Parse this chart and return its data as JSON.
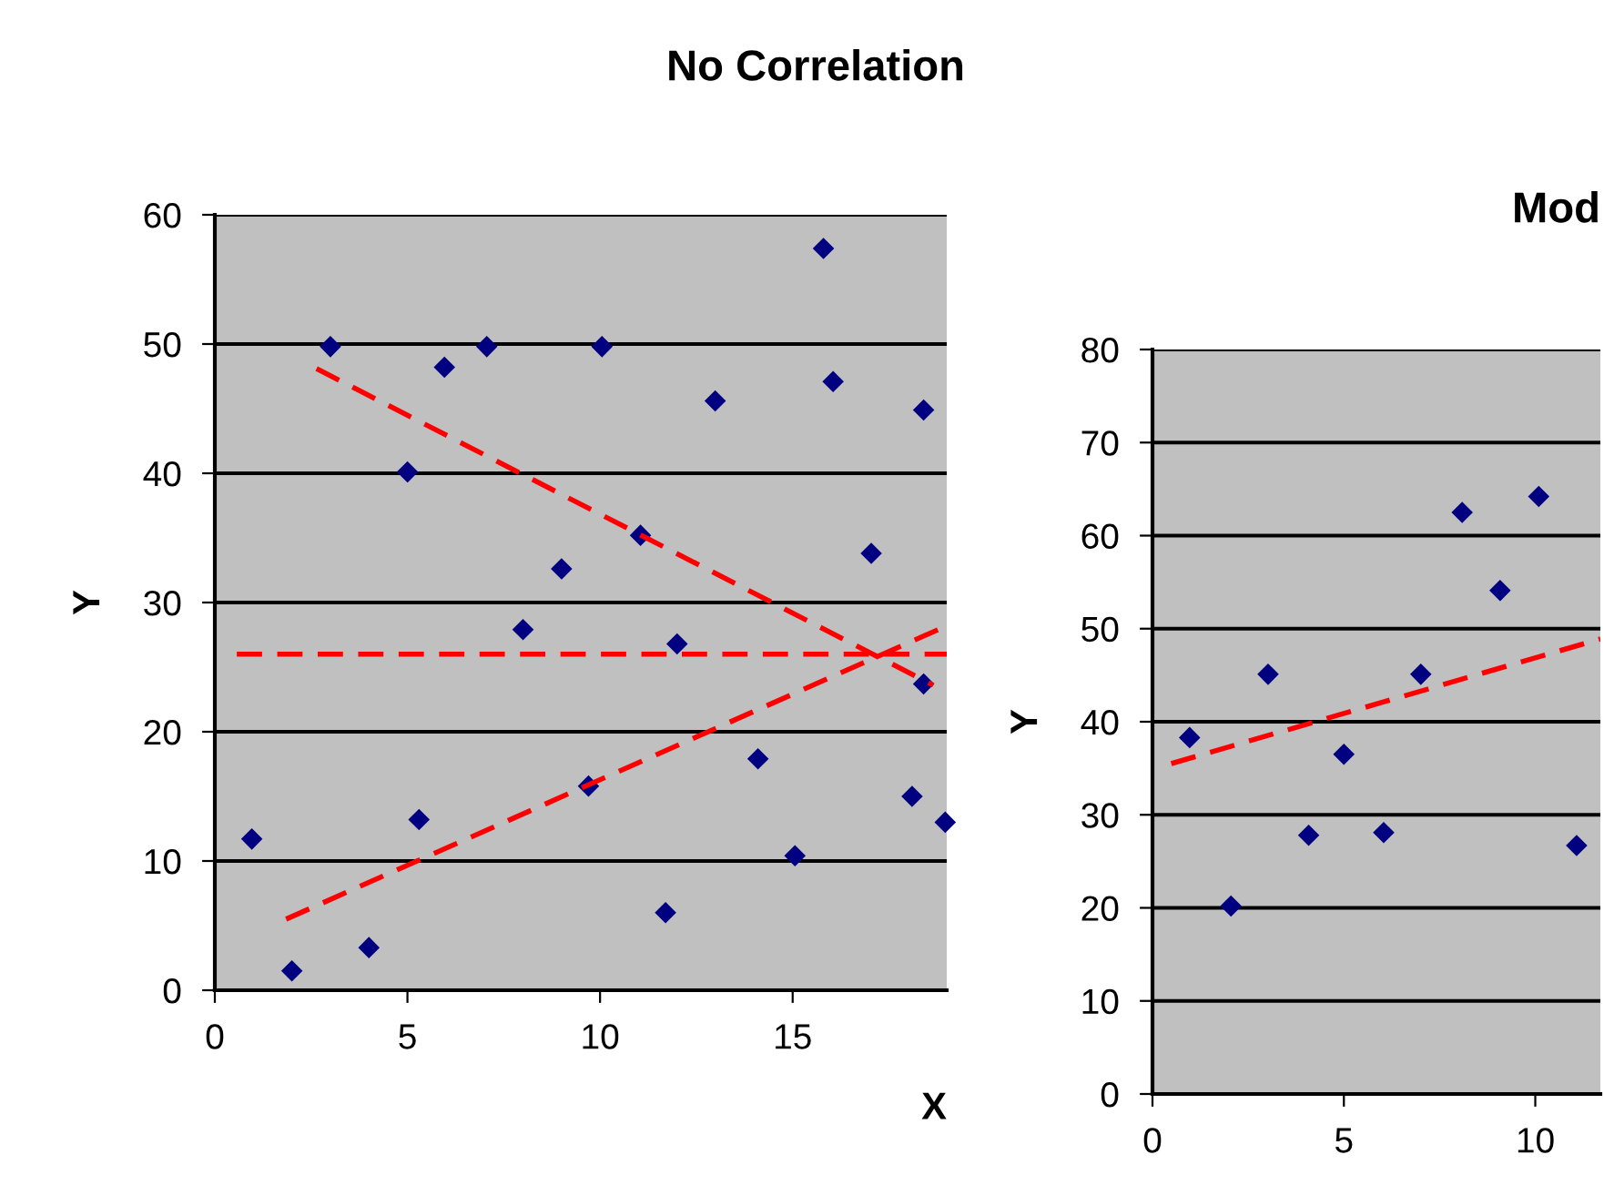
{
  "chart_data": [
    {
      "type": "scatter",
      "title": "No Correlation",
      "xlabel": "X",
      "ylabel": "Y",
      "xlim": [
        0,
        19
      ],
      "xticks": [
        0,
        5,
        10,
        15
      ],
      "ylim": [
        0,
        60
      ],
      "yticks": [
        0,
        10,
        20,
        30,
        40,
        50,
        60
      ],
      "grid": "y",
      "legend": false,
      "marker": "diamond",
      "series": [
        {
          "color": "#000080",
          "x": [
            0.96,
            2.0,
            3.0,
            4.0,
            5.0,
            5.3,
            5.96,
            7.06,
            8.0,
            9.0,
            9.7,
            10.05,
            11.05,
            11.7,
            12.0,
            12.99,
            14.1,
            15.06,
            15.8,
            16.05,
            17.04,
            18.1,
            18.4,
            18.4,
            18.96
          ],
          "values": [
            11.7,
            1.5,
            49.8,
            3.3,
            40.1,
            13.2,
            48.2,
            49.8,
            27.9,
            32.6,
            15.8,
            49.8,
            35.2,
            6.0,
            26.8,
            45.6,
            17.9,
            10.4,
            57.4,
            47.1,
            33.8,
            15.0,
            44.9,
            23.7,
            13.0
          ]
        },
        {
          "type": "line",
          "color": "#ff0000",
          "line_style": "dashed",
          "marker": "none",
          "x": [
            2.64,
            18.65
          ],
          "values": [
            48.1,
            23.6
          ]
        },
        {
          "type": "line",
          "color": "#ff0000",
          "line_style": "dashed",
          "marker": "none",
          "x": [
            0.57,
            19
          ],
          "values": [
            26.0,
            26.0
          ]
        },
        {
          "type": "line",
          "color": "#ff0000",
          "line_style": "dashed",
          "marker": "none",
          "x": [
            1.85,
            19
          ],
          "values": [
            5.5,
            28.2
          ]
        }
      ]
    },
    {
      "type": "scatter",
      "title": "Mod",
      "ylabel": "Y",
      "xlim": [
        0,
        11.7
      ],
      "xticks": [
        0,
        5,
        10
      ],
      "ylim": [
        0,
        80
      ],
      "yticks": [
        0,
        10,
        20,
        30,
        40,
        50,
        60,
        70,
        80
      ],
      "grid": "y",
      "legend": false,
      "marker": "diamond",
      "series": [
        {
          "color": "#000080",
          "x": [
            0.97,
            2.05,
            3.02,
            4.08,
            5.0,
            6.04,
            7.01,
            8.09,
            9.08,
            10.09,
            11.08
          ],
          "values": [
            38.3,
            20.2,
            45.1,
            27.8,
            36.5,
            28.1,
            45.1,
            62.5,
            54.1,
            64.2,
            26.7
          ]
        },
        {
          "type": "line",
          "color": "#ff0000",
          "line_style": "dashed",
          "marker": "none",
          "x": [
            0.49,
            11.7
          ],
          "values": [
            35.5,
            48.9
          ]
        }
      ]
    }
  ]
}
